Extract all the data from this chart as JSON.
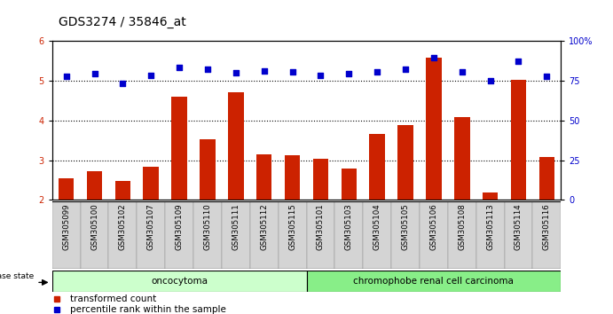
{
  "title": "GDS3274 / 35846_at",
  "categories": [
    "GSM305099",
    "GSM305100",
    "GSM305102",
    "GSM305107",
    "GSM305109",
    "GSM305110",
    "GSM305111",
    "GSM305112",
    "GSM305115",
    "GSM305101",
    "GSM305103",
    "GSM305104",
    "GSM305105",
    "GSM305106",
    "GSM305108",
    "GSM305113",
    "GSM305114",
    "GSM305116"
  ],
  "bar_values": [
    2.55,
    2.72,
    2.49,
    2.84,
    4.6,
    3.52,
    4.7,
    3.15,
    3.13,
    3.03,
    2.8,
    3.65,
    3.88,
    5.57,
    4.08,
    2.2,
    5.02,
    3.08
  ],
  "dot_values": [
    5.1,
    5.18,
    4.93,
    5.13,
    5.33,
    5.28,
    5.2,
    5.25,
    5.23,
    5.13,
    5.18,
    5.23,
    5.28,
    5.57,
    5.23,
    5.0,
    5.48,
    5.1
  ],
  "bar_color": "#cc2200",
  "dot_color": "#0000cc",
  "ylim_left": [
    2,
    6
  ],
  "ylim_right": [
    0,
    100
  ],
  "yticks_left": [
    2,
    3,
    4,
    5,
    6
  ],
  "yticks_right": [
    0,
    25,
    50,
    75,
    100
  ],
  "ytick_labels_right": [
    "0",
    "25",
    "50",
    "75",
    "100%"
  ],
  "group1_label": "oncocytoma",
  "group2_label": "chromophobe renal cell carcinoma",
  "group1_count": 9,
  "group2_count": 9,
  "group1_color": "#ccffcc",
  "group2_color": "#88ee88",
  "disease_state_label": "disease state",
  "legend_bar_label": "transformed count",
  "legend_dot_label": "percentile rank within the sample",
  "background_color": "#ffffff",
  "title_fontsize": 10,
  "tick_fontsize": 7,
  "bar_width": 0.55
}
